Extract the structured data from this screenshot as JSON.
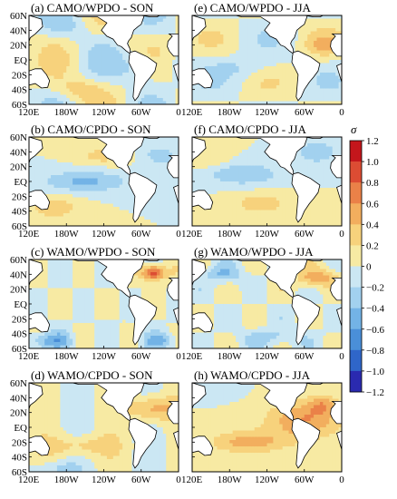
{
  "chart_data": {
    "type": "heatmap",
    "colorbar": {
      "label": "σ",
      "min": -1.2,
      "max": 1.2,
      "step": 0.2,
      "tick_labels": [
        "1.2",
        "1.0",
        "0.8",
        "0.6",
        "0.4",
        "0.2",
        "0",
        "−0.2",
        "−0.4",
        "−0.6",
        "−0.8",
        "−1.0",
        "−1.2"
      ],
      "colors": [
        "#2a2ab0",
        "#2f66c9",
        "#4a8fd8",
        "#73b3e6",
        "#a2d1ef",
        "#cbe7f3",
        "#f7eaa3",
        "#f7d27c",
        "#f2ae5e",
        "#ea8148",
        "#dc4c33",
        "#c4161c"
      ]
    },
    "lat_tick_labels": [
      "60N",
      "40N",
      "20N",
      "EQ",
      "20S",
      "40S",
      "60S"
    ],
    "lon_tick_labels": [
      "120E",
      "180W",
      "120W",
      "60W",
      "0"
    ],
    "lat_range": [
      -60,
      60
    ],
    "lon_range": [
      120,
      360
    ],
    "panels": [
      {
        "title": "(a) CAMO/WPDO - SON",
        "pattern": "a",
        "show_lat": true,
        "show_lon": true
      },
      {
        "title": "(e) CAMO/WPDO - JJA",
        "pattern": "e",
        "show_lat": false,
        "show_lon": true
      },
      {
        "title": "(b) CAMO/CPDO - SON",
        "pattern": "b",
        "show_lat": true,
        "show_lon": true
      },
      {
        "title": "(f) CAMO/CPDO - JJA",
        "pattern": "f",
        "show_lat": false,
        "show_lon": true
      },
      {
        "title": "(c) WAMO/WPDO - SON",
        "pattern": "c",
        "show_lat": true,
        "show_lon": true
      },
      {
        "title": "(g) WAMO/WPDO - JJA",
        "pattern": "g",
        "show_lat": false,
        "show_lon": true
      },
      {
        "title": "(d) WAMO/CPDO - SON",
        "pattern": "d",
        "show_lat": true,
        "show_lon": true
      },
      {
        "title": "(h) WAMO/CPDO - JJA",
        "pattern": "h",
        "show_lat": false,
        "show_lon": true
      }
    ]
  }
}
